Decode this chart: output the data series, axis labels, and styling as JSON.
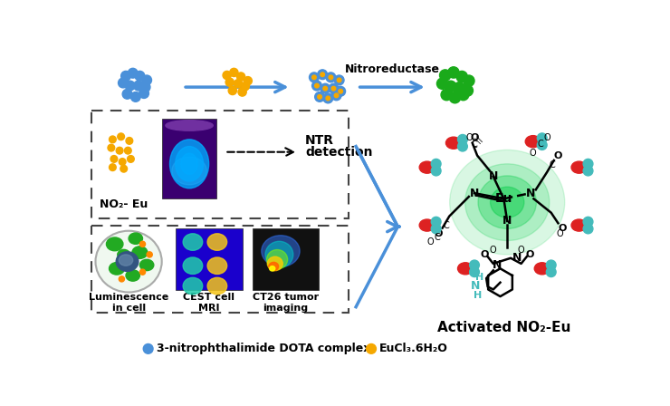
{
  "bg_color": "#ffffff",
  "arrow_color": "#4a90d9",
  "blue_dot_color": "#4a90d9",
  "yellow_dot_color": "#f5a800",
  "green_dot_color": "#1aaa1a",
  "dashed_box_color": "#444444",
  "text_nitroreductase": "Nitroreductase",
  "text_ntr_line1": "NTR",
  "text_ntr_line2": "detection",
  "text_no2eu": "NO₂- Eu",
  "text_lum": "Luminescence\nin cell",
  "text_cest": "CEST cell\nMRI",
  "text_ct26": "CT26 tumor\nimaging",
  "text_activated": "Activated NO₂-Eu",
  "text_legend1": "3-nitrophthalimide DOTA complex",
  "text_legend2": "EuCl₃.6H₂O",
  "red_circle_color": "#dd2222",
  "cyan_circle_color": "#44bbbb",
  "figw": 7.4,
  "figh": 4.48
}
